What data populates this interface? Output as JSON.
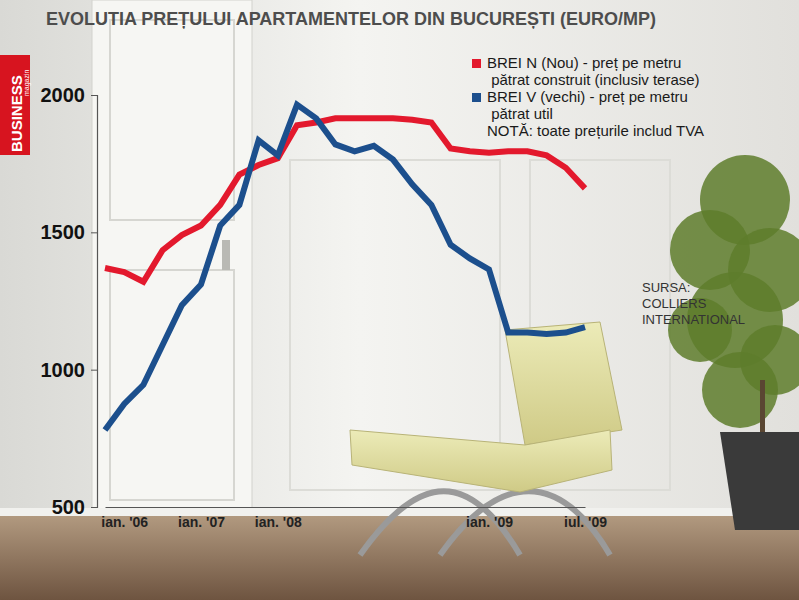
{
  "chart_data": {
    "type": "line",
    "title": "EVOLUTIA PREȚULUI APARTAMENTELOR DIN BUCUREȘTI (EURO/MP)",
    "logo": [
      "BUSINESS",
      "magazin"
    ],
    "annotations": [
      "NOTĂ: toate prețurile includ TVA"
    ],
    "source": [
      "SURSA:",
      "COLLIERS",
      "INTERNATIONAL"
    ],
    "categories": [
      null,
      "ian. '06",
      null,
      null,
      null,
      "ian. '07",
      null,
      null,
      null,
      "ian. '08",
      null,
      null,
      null,
      null,
      null,
      null,
      null,
      null,
      null,
      null,
      "ian. '09",
      null,
      null,
      null,
      null,
      "iul. '09"
    ],
    "series": [
      {
        "name": "BREI N (Nou) - preț pe metru pătrat construit (inclusiv terase)",
        "color": "#e3192d",
        "values": [
          1370,
          1355,
          1320,
          1435,
          1490,
          1525,
          1600,
          1710,
          1745,
          1770,
          1890,
          1900,
          1915,
          1915,
          1915,
          1915,
          1910,
          1900,
          1805,
          1795,
          1790,
          1795,
          1795,
          1780,
          1735,
          1660
        ]
      },
      {
        "name": "BREI V (vechi) - preț pe metru pătrat util",
        "color": "#1c4f8d",
        "values": [
          780,
          875,
          945,
          1090,
          1235,
          1310,
          1525,
          1600,
          1835,
          1780,
          1965,
          1915,
          1820,
          1795,
          1815,
          1765,
          1675,
          1600,
          1455,
          1405,
          1365,
          1135,
          1135,
          1130,
          1135,
          1155
        ]
      }
    ],
    "ylim": [
      500,
      2000
    ],
    "yticks": [
      500,
      1000,
      1500,
      2000
    ],
    "grid": false,
    "legend": "top-right"
  }
}
